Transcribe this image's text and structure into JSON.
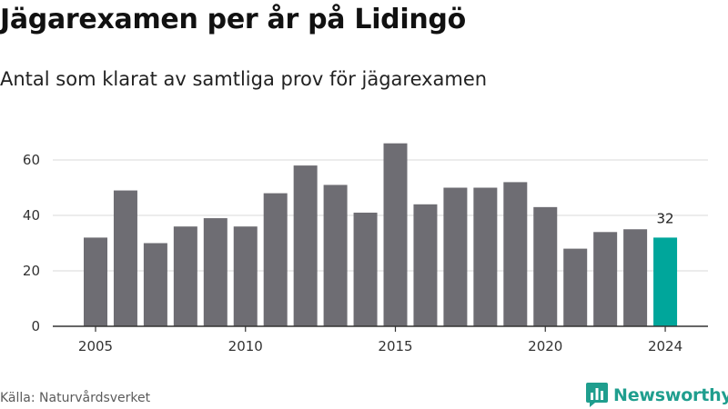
{
  "header": {
    "title": "Jägarexamen per år på Lidingö",
    "subtitle": "Antal som klarat av samtliga prov för jägarexamen"
  },
  "footer": {
    "source": "Källa: Naturvårdsverket",
    "brand": "Newsworthy",
    "brand_icon": "bar-chart-speech-icon"
  },
  "colors": {
    "bar": "#6e6d73",
    "highlight": "#00a69b",
    "grid": "#d9d9d9",
    "axis": "#333333",
    "brand": "#1f9e8e"
  },
  "chart_data": {
    "type": "bar",
    "title": "Jägarexamen per år på Lidingö",
    "subtitle": "Antal som klarat av samtliga prov för jägarexamen",
    "xlabel": "",
    "ylabel": "",
    "x": [
      2005,
      2006,
      2007,
      2008,
      2009,
      2010,
      2011,
      2012,
      2013,
      2014,
      2015,
      2016,
      2017,
      2018,
      2019,
      2020,
      2021,
      2022,
      2023,
      2024
    ],
    "values": [
      32,
      49,
      30,
      36,
      39,
      36,
      48,
      58,
      51,
      41,
      66,
      44,
      50,
      50,
      52,
      43,
      28,
      34,
      35,
      32
    ],
    "x_ticks": [
      "2005",
      "2010",
      "2015",
      "2020",
      "2024"
    ],
    "ylim": [
      0,
      70
    ],
    "y_ticks": [
      0,
      20,
      40,
      60
    ],
    "grid": true,
    "highlight_index": 19,
    "data_labels": [
      {
        "index": 19,
        "text": "32"
      }
    ]
  }
}
